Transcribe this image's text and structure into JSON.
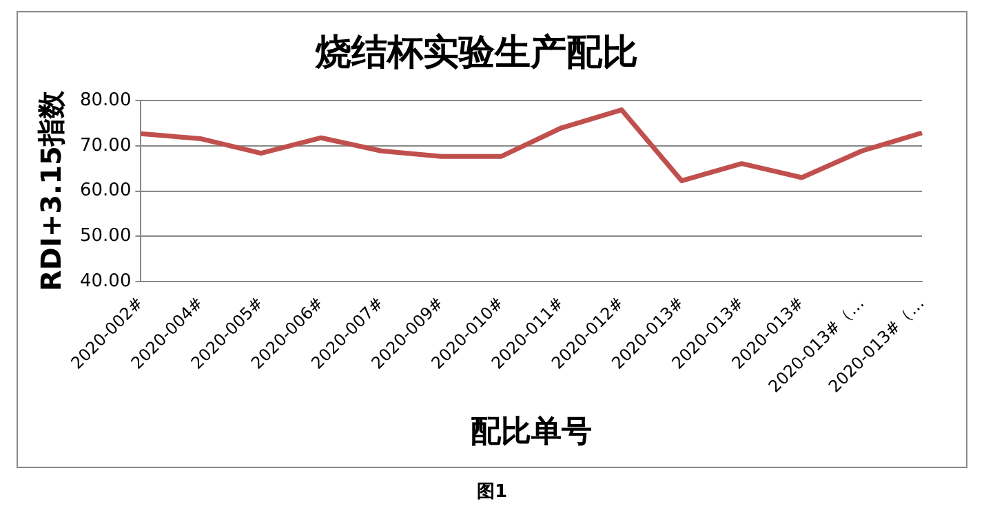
{
  "chart_data": {
    "type": "line",
    "title": "烧结杯实验生产配比",
    "xlabel": "配比单号",
    "ylabel": "RDI+3.15指数",
    "categories": [
      "2020-002#",
      "2020-004#",
      "2020-005#",
      "2020-006#",
      "2020-007#",
      "2020-009#",
      "2020-010#",
      "2020-011#",
      "2020-012#",
      "2020-013#",
      "2020-013#",
      "2020-013#",
      "2020-013#（…",
      "2020-013#（…"
    ],
    "series": [
      {
        "color": "#c0504d",
        "values": [
          72.7,
          71.6,
          68.4,
          71.8,
          68.9,
          67.7,
          67.7,
          74.0,
          78.0,
          62.3,
          66.1,
          63.0,
          68.9,
          72.9
        ]
      }
    ],
    "ylim": [
      40,
      80
    ],
    "yticks": [
      {
        "value": 40,
        "label": "40.00"
      },
      {
        "value": 50,
        "label": "50.00"
      },
      {
        "value": 60,
        "label": "60.00"
      },
      {
        "value": 70,
        "label": "70.00"
      },
      {
        "value": 80,
        "label": "80.00"
      }
    ],
    "grid": "y",
    "legend": false,
    "marker": "none",
    "line_style": "solid",
    "annotations": [
      "图1"
    ]
  }
}
